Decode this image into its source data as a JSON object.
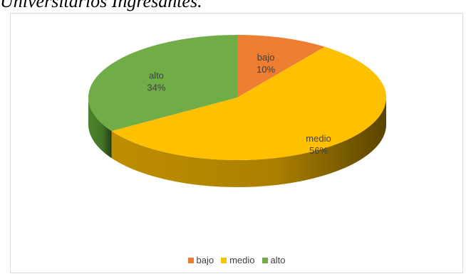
{
  "caption": "Universitarios Ingresantes.",
  "chart_data": {
    "type": "pie",
    "categories": [
      "bajo",
      "medio",
      "alto"
    ],
    "values": [
      10,
      56,
      34
    ],
    "labels": [
      "10%",
      "56%",
      "34%"
    ],
    "colors": [
      "#ed7d31",
      "#ffc000",
      "#70ad47"
    ],
    "side_colors": [
      "#b85d1f",
      "#c99600",
      "#4f8a2e"
    ],
    "legend_position": "bottom",
    "three_d": true
  }
}
